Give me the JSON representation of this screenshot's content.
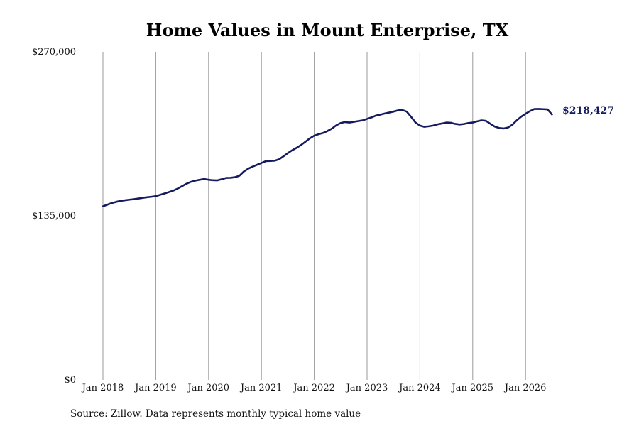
{
  "chart_data": {
    "type": "line",
    "title": "Home Values in Mount Enterprise, TX",
    "source": "Source: Zillow. Data represents monthly typical home value",
    "x_start": "2018-01",
    "x_ticks": [
      {
        "label": "Jan 2018",
        "date": "2018-01"
      },
      {
        "label": "Jan 2019",
        "date": "2019-01"
      },
      {
        "label": "Jan 2020",
        "date": "2020-01"
      },
      {
        "label": "Jan 2021",
        "date": "2021-01"
      },
      {
        "label": "Jan 2022",
        "date": "2022-01"
      },
      {
        "label": "Jan 2023",
        "date": "2023-01"
      },
      {
        "label": "Jan 2024",
        "date": "2024-01"
      },
      {
        "label": "Jan 2025",
        "date": "2025-01"
      },
      {
        "label": "Jan 2026",
        "date": "2026-01"
      }
    ],
    "y_ticks": [
      {
        "label": "$0",
        "value": 0
      },
      {
        "label": "$135,000",
        "value": 135000
      },
      {
        "label": "$270,000",
        "value": 270000
      }
    ],
    "ylim": [
      0,
      270000
    ],
    "grid": "vertical",
    "line_color": "#151a5e",
    "end_label": "$218,427",
    "series": [
      {
        "values": [
          142800,
          144200,
          145500,
          146500,
          147300,
          147800,
          148300,
          148700,
          149200,
          149800,
          150300,
          150700,
          151200,
          152300,
          153400,
          154600,
          155800,
          157500,
          159500,
          161500,
          163000,
          164000,
          164700,
          165300,
          164700,
          164300,
          164200,
          165200,
          166200,
          166300,
          166800,
          168000,
          171500,
          173800,
          175500,
          177000,
          178500,
          180000,
          180200,
          180400,
          181500,
          184000,
          186600,
          189000,
          191000,
          193300,
          196000,
          198800,
          201000,
          202200,
          203200,
          204800,
          206800,
          209500,
          211400,
          212200,
          211800,
          212400,
          213000,
          213600,
          214800,
          216000,
          217500,
          218300,
          219200,
          220000,
          220800,
          221800,
          222100,
          220800,
          216500,
          211800,
          209300,
          208300,
          208700,
          209300,
          210300,
          211000,
          211800,
          211600,
          210700,
          210200,
          210600,
          211400,
          211800,
          212800,
          213600,
          213200,
          210800,
          208500,
          207300,
          206900,
          207700,
          210000,
          213600,
          216600,
          219000,
          221200,
          222900,
          223000,
          222800,
          222600,
          218427
        ]
      }
    ]
  }
}
